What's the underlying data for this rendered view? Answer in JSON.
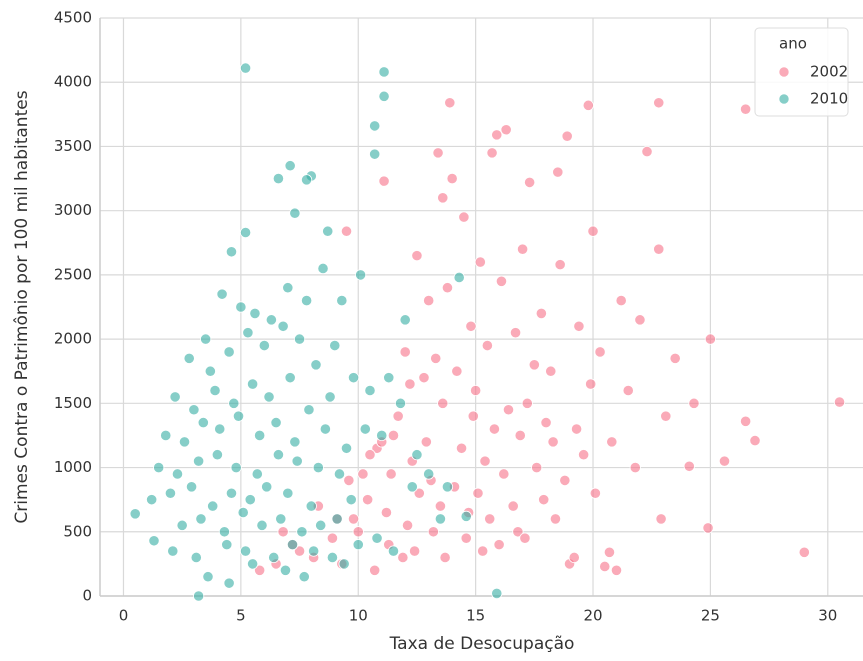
{
  "chart_data": {
    "type": "scatter",
    "xlabel": "Taxa de Desocupação",
    "ylabel": "Crimes Contra o Patrimônio por 100 mil habitantes",
    "xlim": [
      -1,
      31.5
    ],
    "xticks": [
      0,
      5,
      10,
      15,
      20,
      25,
      30
    ],
    "ylim": [
      0,
      4500
    ],
    "yticks": [
      0,
      500,
      1000,
      1500,
      2000,
      2500,
      3000,
      3500,
      4000,
      4500
    ],
    "grid": true,
    "legend": "upper right",
    "legend_title": "ano",
    "series": [
      {
        "name": "2002",
        "color": "#f77189",
        "x": [
          30.5,
          29.0,
          26.5,
          22.8,
          19.8,
          13.9,
          16.3,
          15.9,
          18.9,
          22.3,
          13.4,
          18.5,
          17.3,
          11.1,
          13.6,
          14.0,
          15.7,
          9.5,
          22.8,
          20.0,
          25.0,
          26.5,
          26.9,
          25.6,
          24.9,
          24.1,
          22.9,
          21.0,
          20.5,
          20.7,
          19.0,
          14.5,
          15.2,
          16.1,
          17.0,
          17.8,
          18.6,
          19.4,
          20.3,
          21.2,
          22.0,
          23.5,
          24.3,
          12.5,
          13.0,
          13.8,
          14.8,
          15.5,
          16.7,
          17.5,
          18.2,
          19.9,
          21.5,
          23.1,
          12.0,
          12.8,
          13.3,
          14.2,
          15.0,
          16.4,
          17.2,
          18.0,
          19.3,
          20.8,
          11.5,
          12.2,
          13.6,
          14.9,
          15.8,
          16.9,
          18.3,
          19.6,
          21.8,
          10.8,
          11.7,
          12.9,
          14.4,
          15.4,
          16.2,
          17.6,
          18.8,
          20.1,
          10.2,
          11.0,
          12.3,
          13.1,
          14.1,
          15.1,
          16.6,
          17.9,
          9.8,
          10.5,
          11.4,
          12.6,
          13.5,
          14.7,
          15.6,
          16.8,
          8.9,
          9.6,
          10.4,
          11.2,
          12.1,
          13.2,
          14.6,
          16.0,
          7.5,
          8.3,
          9.1,
          10.0,
          11.3,
          12.4,
          13.7,
          6.5,
          7.2,
          8.1,
          9.3,
          10.7,
          11.9,
          5.8,
          6.8,
          15.3,
          17.1,
          18.4,
          19.2
        ],
        "values": [
          1510,
          340,
          3790,
          3840,
          3820,
          3840,
          3630,
          3590,
          3580,
          3460,
          3450,
          3300,
          3220,
          3230,
          3100,
          3250,
          3450,
          2840,
          2700,
          2840,
          2000,
          1360,
          1210,
          1050,
          530,
          1010,
          600,
          200,
          230,
          340,
          250,
          2950,
          2600,
          2450,
          2700,
          2200,
          2580,
          2100,
          1900,
          2300,
          2150,
          1850,
          1500,
          2650,
          2300,
          2400,
          2100,
          1950,
          2050,
          1800,
          1750,
          1650,
          1600,
          1400,
          1900,
          1700,
          1850,
          1750,
          1600,
          1450,
          1500,
          1350,
          1300,
          1200,
          1250,
          1650,
          1500,
          1400,
          1300,
          1250,
          1200,
          1100,
          1000,
          1150,
          1400,
          1200,
          1150,
          1050,
          950,
          1000,
          900,
          800,
          950,
          1200,
          1050,
          900,
          850,
          800,
          700,
          750,
          600,
          1100,
          950,
          800,
          700,
          650,
          600,
          500,
          450,
          900,
          750,
          650,
          550,
          500,
          450,
          400,
          350,
          700,
          600,
          500,
          400,
          350,
          300,
          250,
          400,
          300,
          250,
          200,
          300,
          200,
          500,
          350,
          450,
          600,
          300
        ]
      },
      {
        "name": "2010",
        "color": "#36ada4",
        "x": [
          5.2,
          11.1,
          11.1,
          10.7,
          10.7,
          7.1,
          8.0,
          6.6,
          7.8,
          7.3,
          5.2,
          8.7,
          4.6,
          0.5,
          1.3,
          3.2,
          15.9,
          14.6,
          14.3,
          3.5,
          4.2,
          5.0,
          5.6,
          6.3,
          7.0,
          7.8,
          8.5,
          9.3,
          10.1,
          2.8,
          3.7,
          4.5,
          5.3,
          6.0,
          6.8,
          7.5,
          8.2,
          9.0,
          9.8,
          2.2,
          3.0,
          3.9,
          4.7,
          5.5,
          6.2,
          7.1,
          7.9,
          8.8,
          10.5,
          1.8,
          2.6,
          3.4,
          4.1,
          4.9,
          5.8,
          6.5,
          7.3,
          8.6,
          9.5,
          1.5,
          2.3,
          3.2,
          4.0,
          4.8,
          5.7,
          6.6,
          7.4,
          8.3,
          9.2,
          1.2,
          2.0,
          2.9,
          3.8,
          4.6,
          5.4,
          6.1,
          7.0,
          8.0,
          9.7,
          2.5,
          3.3,
          4.3,
          5.1,
          5.9,
          6.7,
          7.6,
          8.4,
          9.1,
          10.8,
          2.1,
          3.1,
          4.4,
          5.2,
          6.4,
          7.2,
          8.1,
          8.9,
          10.0,
          11.5,
          3.6,
          4.5,
          5.5,
          6.9,
          7.7,
          9.4,
          11.0,
          12.5,
          11.8,
          12.3,
          13.0,
          13.5,
          10.3,
          11.3,
          12.0,
          13.8
        ],
        "values": [
          4110,
          4080,
          3890,
          3660,
          3440,
          3350,
          3270,
          3250,
          3240,
          2980,
          2830,
          2840,
          2680,
          640,
          430,
          0,
          20,
          620,
          2480,
          2000,
          2350,
          2250,
          2200,
          2150,
          2400,
          2300,
          2550,
          2300,
          2500,
          1850,
          1750,
          1900,
          2050,
          1950,
          2100,
          2000,
          1800,
          1950,
          1700,
          1550,
          1450,
          1600,
          1500,
          1650,
          1550,
          1700,
          1450,
          1550,
          1600,
          1250,
          1200,
          1350,
          1300,
          1400,
          1250,
          1350,
          1200,
          1300,
          1150,
          1000,
          950,
          1050,
          1100,
          1000,
          950,
          1100,
          1050,
          1000,
          950,
          750,
          800,
          850,
          700,
          800,
          750,
          850,
          800,
          700,
          750,
          550,
          600,
          500,
          650,
          550,
          600,
          500,
          550,
          600,
          450,
          350,
          300,
          400,
          350,
          300,
          400,
          350,
          300,
          400,
          350,
          150,
          100,
          250,
          200,
          150,
          250,
          1250,
          1100,
          1500,
          850,
          950,
          600,
          1300,
          1700,
          2150,
          850
        ]
      }
    ]
  }
}
